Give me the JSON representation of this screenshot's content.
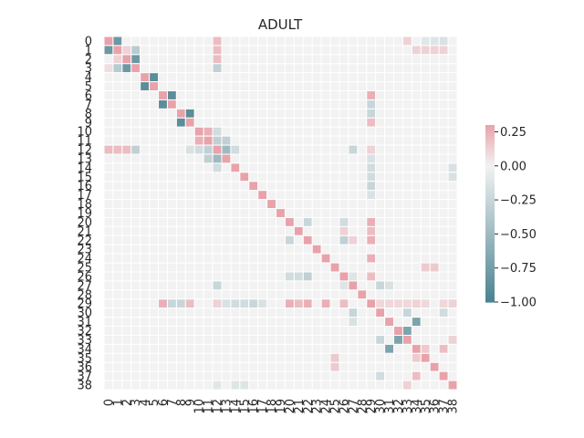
{
  "chart_data": {
    "type": "heatmap",
    "title": "ADULT",
    "row_labels": [
      "0",
      "1",
      "2",
      "3",
      "4",
      "5",
      "6",
      "7",
      "8",
      "9",
      "10",
      "11",
      "12",
      "13",
      "14",
      "15",
      "16",
      "17",
      "18",
      "19",
      "20",
      "21",
      "22",
      "23",
      "24",
      "25",
      "26",
      "27",
      "28",
      "29",
      "30",
      "31",
      "32",
      "33",
      "34",
      "35",
      "36",
      "37",
      "38"
    ],
    "col_labels": [
      "0",
      "1",
      "2",
      "3",
      "4",
      "5",
      "6",
      "7",
      "8",
      "9",
      "10",
      "11",
      "12",
      "13",
      "14",
      "15",
      "16",
      "17",
      "18",
      "19",
      "20",
      "21",
      "22",
      "23",
      "24",
      "25",
      "26",
      "27",
      "28",
      "29",
      "30",
      "31",
      "32",
      "33",
      "34",
      "35",
      "36",
      "37",
      "38"
    ],
    "diagonal_value": 0.3,
    "cells": [
      [
        0,
        1,
        -0.8
      ],
      [
        1,
        0,
        -0.8
      ],
      [
        2,
        3,
        -0.8
      ],
      [
        3,
        2,
        -0.8
      ],
      [
        4,
        5,
        -0.9
      ],
      [
        5,
        4,
        -0.9
      ],
      [
        6,
        7,
        -0.9
      ],
      [
        7,
        6,
        -0.9
      ],
      [
        8,
        9,
        -0.9
      ],
      [
        9,
        8,
        -0.9
      ],
      [
        0,
        12,
        0.2
      ],
      [
        12,
        0,
        0.2
      ],
      [
        1,
        12,
        0.2
      ],
      [
        12,
        1,
        0.2
      ],
      [
        2,
        12,
        0.2
      ],
      [
        12,
        2,
        0.2
      ],
      [
        3,
        12,
        -0.3
      ],
      [
        12,
        3,
        -0.3
      ],
      [
        11,
        12,
        -0.3
      ],
      [
        12,
        11,
        -0.3
      ],
      [
        12,
        13,
        -0.5
      ],
      [
        13,
        12,
        -0.5
      ],
      [
        11,
        13,
        -0.3
      ],
      [
        13,
        11,
        -0.3
      ],
      [
        10,
        12,
        -0.2
      ],
      [
        12,
        10,
        -0.2
      ],
      [
        12,
        14,
        -0.2
      ],
      [
        14,
        12,
        -0.2
      ],
      [
        1,
        2,
        0.12
      ],
      [
        2,
        1,
        0.12
      ],
      [
        3,
        1,
        -0.35
      ],
      [
        1,
        3,
        -0.35
      ],
      [
        3,
        0,
        0.08
      ],
      [
        11,
        10,
        0.25
      ],
      [
        10,
        11,
        0.25
      ],
      [
        12,
        9,
        -0.15
      ],
      [
        29,
        20,
        0.25
      ],
      [
        20,
        29,
        0.25
      ],
      [
        29,
        21,
        0.2
      ],
      [
        21,
        29,
        0.2
      ],
      [
        29,
        22,
        0.25
      ],
      [
        22,
        29,
        0.25
      ],
      [
        29,
        6,
        0.25
      ],
      [
        6,
        29,
        0.25
      ],
      [
        29,
        9,
        0.2
      ],
      [
        9,
        29,
        0.2
      ],
      [
        29,
        7,
        -0.25
      ],
      [
        7,
        29,
        -0.25
      ],
      [
        29,
        8,
        -0.25
      ],
      [
        8,
        29,
        -0.25
      ],
      [
        29,
        14,
        -0.2
      ],
      [
        14,
        29,
        -0.2
      ],
      [
        29,
        15,
        -0.2
      ],
      [
        15,
        29,
        -0.2
      ],
      [
        29,
        16,
        -0.25
      ],
      [
        16,
        29,
        -0.25
      ],
      [
        29,
        17,
        -0.15
      ],
      [
        17,
        29,
        -0.15
      ],
      [
        29,
        24,
        0.25
      ],
      [
        24,
        29,
        0.25
      ],
      [
        29,
        26,
        0.2
      ],
      [
        26,
        29,
        0.2
      ],
      [
        29,
        13,
        -0.15
      ],
      [
        13,
        29,
        -0.15
      ],
      [
        29,
        12,
        0.12
      ],
      [
        12,
        29,
        0.12
      ],
      [
        22,
        20,
        -0.25
      ],
      [
        20,
        22,
        -0.25
      ],
      [
        22,
        26,
        -0.3
      ],
      [
        26,
        22,
        -0.3
      ],
      [
        22,
        27,
        0.12
      ],
      [
        20,
        26,
        -0.2
      ],
      [
        26,
        20,
        -0.2
      ],
      [
        21,
        26,
        0.12
      ],
      [
        26,
        21,
        -0.2
      ],
      [
        30,
        27,
        -0.25
      ],
      [
        27,
        30,
        -0.25
      ],
      [
        30,
        33,
        -0.25
      ],
      [
        33,
        30,
        -0.25
      ],
      [
        30,
        37,
        -0.2
      ],
      [
        37,
        30,
        -0.2
      ],
      [
        32,
        33,
        -0.7
      ],
      [
        33,
        32,
        -0.7
      ],
      [
        34,
        31,
        -0.7
      ],
      [
        31,
        34,
        -0.7
      ],
      [
        34,
        37,
        0.2
      ],
      [
        37,
        34,
        0.2
      ],
      [
        34,
        35,
        0.15
      ],
      [
        35,
        34,
        0.15
      ],
      [
        31,
        27,
        -0.15
      ],
      [
        27,
        31,
        -0.15
      ],
      [
        27,
        12,
        -0.25
      ],
      [
        12,
        27,
        -0.25
      ],
      [
        25,
        35,
        0.15
      ],
      [
        35,
        25,
        0.15
      ],
      [
        25,
        36,
        0.15
      ],
      [
        36,
        25,
        0.15
      ],
      [
        0,
        33,
        0.12
      ],
      [
        0,
        35,
        -0.1
      ],
      [
        0,
        36,
        -0.12
      ],
      [
        0,
        37,
        -0.15
      ],
      [
        1,
        34,
        0.12
      ],
      [
        1,
        35,
        0.12
      ],
      [
        1,
        36,
        0.12
      ],
      [
        1,
        37,
        0.12
      ],
      [
        26,
        27,
        -0.12
      ],
      [
        27,
        26,
        -0.12
      ],
      [
        29,
        30,
        0.1
      ],
      [
        29,
        31,
        0.1
      ],
      [
        29,
        32,
        0.1
      ],
      [
        29,
        33,
        0.1
      ],
      [
        29,
        34,
        0.12
      ],
      [
        29,
        35,
        0.1
      ],
      [
        29,
        37,
        0.1
      ],
      [
        29,
        38,
        0.12
      ],
      [
        38,
        33,
        0.12
      ],
      [
        38,
        12,
        -0.1
      ],
      [
        33,
        38,
        0.12
      ],
      [
        14,
        38,
        -0.15
      ],
      [
        15,
        38,
        -0.15
      ],
      [
        38,
        14,
        -0.12
      ],
      [
        38,
        15,
        -0.12
      ]
    ],
    "colorbar": {
      "min": -1.0,
      "max": 0.3,
      "ticks": [
        "0.25",
        "0.00",
        "−0.25",
        "−0.50",
        "−0.75",
        "−1.00"
      ],
      "tick_values": [
        0.25,
        0.0,
        -0.25,
        -0.5,
        -0.75,
        -1.0
      ]
    },
    "colormap": {
      "negative": "#4a8290",
      "zero": "#f2f2f2",
      "positive": "#e8a2aa"
    },
    "grid": "white cell separators",
    "legend": "colorbar right"
  }
}
